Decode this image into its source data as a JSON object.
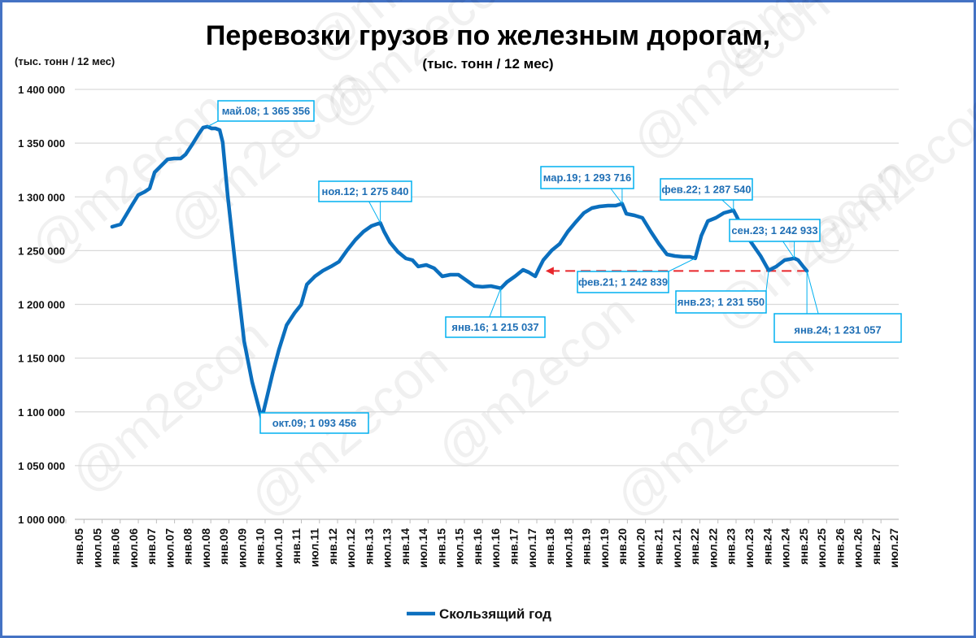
{
  "chart_data": {
    "type": "line",
    "title": "Перевозки грузов по железным дорогам,",
    "subtitle": "(тыс. тонн / 12 мес)",
    "ylabel": "(тыс. тонн / 12 мес)",
    "xlabel": "",
    "ylim": [
      1000000,
      1400000
    ],
    "yticks": [
      "1 000 000",
      "1 050 000",
      "1 100 000",
      "1 150 000",
      "1 200 000",
      "1 250 000",
      "1 300 000",
      "1 350 000",
      "1 400 000"
    ],
    "grid": true,
    "legend": {
      "position": "bottom",
      "entries": [
        "Скользящий год"
      ]
    },
    "x_tick_labels": [
      "янв.05",
      "июл.05",
      "янв.06",
      "июл.06",
      "янв.07",
      "июл.07",
      "янв.08",
      "июл.08",
      "янв.09",
      "июл.09",
      "янв.10",
      "июл.10",
      "янв.11",
      "июл.11",
      "янв.12",
      "июл.12",
      "янв.13",
      "июл.13",
      "янв.14",
      "июл.14",
      "янв.15",
      "июл.15",
      "янв.16",
      "июл.16",
      "янв.17",
      "июл.17",
      "янв.18",
      "июл.18",
      "янв.19",
      "июл.19",
      "янв.20",
      "июл.20",
      "янв.21",
      "июл.21",
      "янв.22",
      "июл.22",
      "янв.23",
      "июл.23",
      "янв.24",
      "июл.24",
      "янв.25",
      "июл.25",
      "янв.26",
      "июл.26",
      "янв.27",
      "июл.27"
    ],
    "series": [
      {
        "name": "Скользящий год",
        "color": "#0B6FBE",
        "points_year_value_thousands": [
          [
            2005.84,
            1272.2
          ],
          [
            2006.06,
            1274.5
          ],
          [
            2006.2,
            1282.8
          ],
          [
            2006.35,
            1291.9
          ],
          [
            2006.52,
            1301.7
          ],
          [
            2006.69,
            1304.7
          ],
          [
            2006.82,
            1307.8
          ],
          [
            2006.95,
            1322.9
          ],
          [
            2007.12,
            1328.9
          ],
          [
            2007.29,
            1335.0
          ],
          [
            2007.46,
            1335.7
          ],
          [
            2007.63,
            1335.7
          ],
          [
            2007.76,
            1339.5
          ],
          [
            2007.93,
            1348.6
          ],
          [
            2008.1,
            1358.4
          ],
          [
            2008.22,
            1364.5
          ],
          [
            2008.33,
            1365.4
          ],
          [
            2008.44,
            1363.7
          ],
          [
            2008.54,
            1363.7
          ],
          [
            2008.65,
            1362.2
          ],
          [
            2008.73,
            1350.9
          ],
          [
            2008.86,
            1301.7
          ],
          [
            2009.07,
            1233.6
          ],
          [
            2009.29,
            1165.6
          ],
          [
            2009.5,
            1127.8
          ],
          [
            2009.75,
            1093.5
          ],
          [
            2009.88,
            1112.7
          ],
          [
            2010.03,
            1135.3
          ],
          [
            2010.2,
            1158.0
          ],
          [
            2010.4,
            1180.7
          ],
          [
            2010.61,
            1192.1
          ],
          [
            2010.78,
            1199.6
          ],
          [
            2010.93,
            1218.5
          ],
          [
            2011.14,
            1226.1
          ],
          [
            2011.35,
            1231.4
          ],
          [
            2011.56,
            1235.2
          ],
          [
            2011.77,
            1239.7
          ],
          [
            2011.98,
            1250.3
          ],
          [
            2012.2,
            1260.1
          ],
          [
            2012.41,
            1267.7
          ],
          [
            2012.62,
            1273.0
          ],
          [
            2012.85,
            1275.8
          ],
          [
            2012.95,
            1267.7
          ],
          [
            2013.1,
            1257.8
          ],
          [
            2013.31,
            1248.8
          ],
          [
            2013.52,
            1242.7
          ],
          [
            2013.69,
            1241.2
          ],
          [
            2013.84,
            1235.2
          ],
          [
            2014.05,
            1236.7
          ],
          [
            2014.26,
            1233.6
          ],
          [
            2014.47,
            1226.1
          ],
          [
            2014.68,
            1227.6
          ],
          [
            2014.89,
            1227.6
          ],
          [
            2015.1,
            1222.3
          ],
          [
            2015.31,
            1217.0
          ],
          [
            2015.52,
            1216.3
          ],
          [
            2015.74,
            1217.0
          ],
          [
            2016.0,
            1215.0
          ],
          [
            2016.16,
            1220.8
          ],
          [
            2016.37,
            1226.1
          ],
          [
            2016.58,
            1232.1
          ],
          [
            2016.73,
            1229.9
          ],
          [
            2016.9,
            1226.1
          ],
          [
            2017.0,
            1233.6
          ],
          [
            2017.11,
            1241.2
          ],
          [
            2017.33,
            1250.3
          ],
          [
            2017.54,
            1256.3
          ],
          [
            2017.75,
            1267.7
          ],
          [
            2017.96,
            1276.7
          ],
          [
            2018.17,
            1285.1
          ],
          [
            2018.38,
            1289.6
          ],
          [
            2018.58,
            1291.1
          ],
          [
            2018.8,
            1291.9
          ],
          [
            2019.0,
            1291.9
          ],
          [
            2019.17,
            1293.7
          ],
          [
            2019.28,
            1284.3
          ],
          [
            2019.49,
            1282.8
          ],
          [
            2019.7,
            1280.5
          ],
          [
            2019.92,
            1267.7
          ],
          [
            2020.13,
            1256.3
          ],
          [
            2020.34,
            1246.5
          ],
          [
            2020.55,
            1245.0
          ],
          [
            2020.77,
            1244.2
          ],
          [
            2020.94,
            1244.2
          ],
          [
            2021.08,
            1242.8
          ],
          [
            2021.24,
            1263.9
          ],
          [
            2021.41,
            1277.5
          ],
          [
            2021.62,
            1280.5
          ],
          [
            2021.83,
            1285.1
          ],
          [
            2022.08,
            1287.5
          ],
          [
            2022.15,
            1282.8
          ],
          [
            2022.36,
            1267.7
          ],
          [
            2022.57,
            1256.3
          ],
          [
            2022.79,
            1245.0
          ],
          [
            2023.0,
            1231.6
          ],
          [
            2023.2,
            1235.2
          ],
          [
            2023.42,
            1241.2
          ],
          [
            2023.67,
            1242.9
          ],
          [
            2023.77,
            1241.2
          ],
          [
            2023.94,
            1233.6
          ],
          [
            2024.0,
            1231.1
          ]
        ]
      }
    ],
    "reference_line": {
      "value": 1231057,
      "from": 2017.0,
      "to": 2024.0,
      "color": "#E8262B",
      "style": "dashed-arrow"
    },
    "annotations": [
      {
        "text": "май.08; 1 365 356",
        "year": 2008.33,
        "value": 1365356
      },
      {
        "text": "окт.09; 1 093 456",
        "year": 2009.75,
        "value": 1093456
      },
      {
        "text": "ноя.12; 1 275 840",
        "year": 2012.85,
        "value": 1275840
      },
      {
        "text": "янв.16; 1 215 037",
        "year": 2016.0,
        "value": 1215037
      },
      {
        "text": "мар.19; 1 293 716",
        "year": 2019.17,
        "value": 1293716
      },
      {
        "text": "фев.21; 1 242 839",
        "year": 2021.08,
        "value": 1242839
      },
      {
        "text": "фев.22; 1 287 540",
        "year": 2022.08,
        "value": 1287540
      },
      {
        "text": "янв.23; 1 231 550",
        "year": 2023.0,
        "value": 1231550
      },
      {
        "text": "сен.23; 1 242 933",
        "year": 2023.67,
        "value": 1242933
      },
      {
        "text": "янв.24; 1 231 057",
        "year": 2024.0,
        "value": 1231057
      }
    ],
    "watermark": "@m2econ"
  }
}
